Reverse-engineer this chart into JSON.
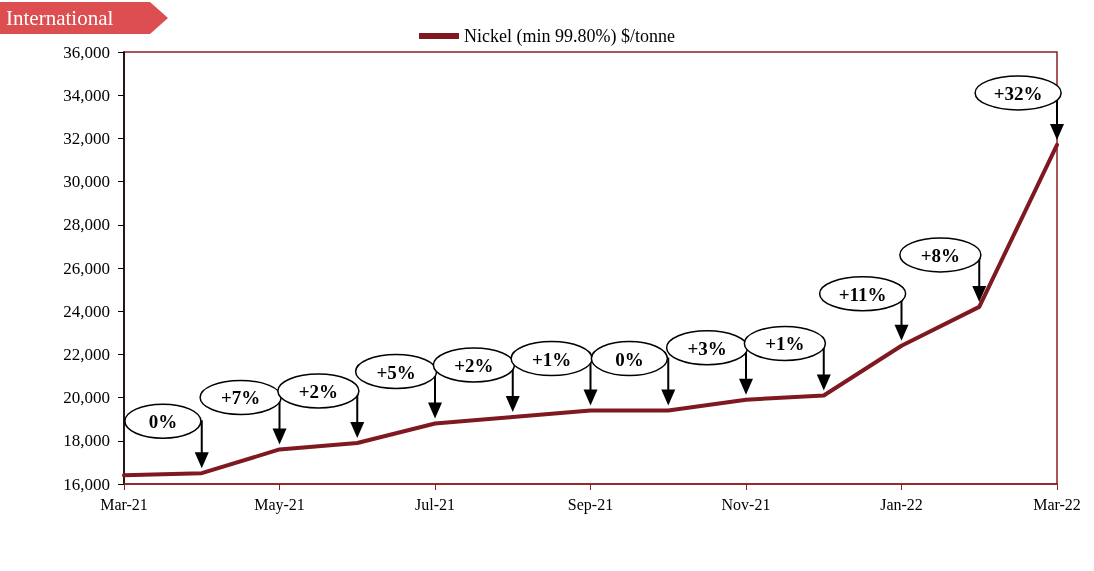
{
  "chart_data": {
    "type": "line",
    "categories": [
      "Mar-21",
      null,
      "May-21",
      null,
      "Jul-21",
      null,
      "Sep-21",
      null,
      "Nov-21",
      null,
      "Jan-22",
      null,
      "Mar-22"
    ],
    "series": [
      {
        "name": "Nickel (min 99.80%) $/tonne",
        "color": "#7f1820",
        "values": [
          16400,
          16500,
          17600,
          17900,
          18800,
          19100,
          19400,
          19400,
          19900,
          20100,
          22400,
          24200,
          31700
        ]
      }
    ],
    "ylim": [
      16000,
      36000
    ],
    "yticks": [
      {
        "value": 16000,
        "label": "16,000"
      },
      {
        "value": 18000,
        "label": "18,000"
      },
      {
        "value": 20000,
        "label": "20,000"
      },
      {
        "value": 22000,
        "label": "22,000"
      },
      {
        "value": 24000,
        "label": "24,000"
      },
      {
        "value": 26000,
        "label": "26,000"
      },
      {
        "value": 28000,
        "label": "28,000"
      },
      {
        "value": 30000,
        "label": "30,000"
      },
      {
        "value": 32000,
        "label": "32,000"
      },
      {
        "value": 34000,
        "label": "34,000"
      },
      {
        "value": 36000,
        "label": "36,000"
      }
    ],
    "annotations": [
      "International",
      "0%",
      "+7%",
      "+2%",
      "+5%",
      "+2%",
      "+1%",
      "0%",
      "+3%",
      "+1%",
      "+11%",
      "+8%",
      "+32%"
    ],
    "legend": "top",
    "grid": false,
    "marker": "none",
    "line_style": "solid"
  }
}
